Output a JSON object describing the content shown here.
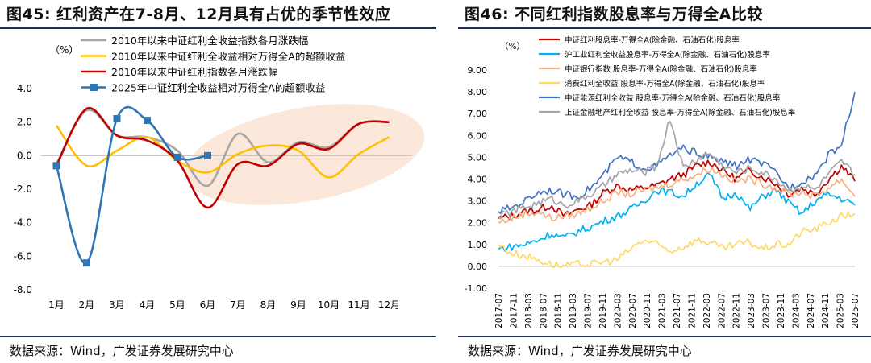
{
  "left": {
    "title": "图45:  红利资产在7-8月、12月具有占优的季节性效应",
    "source": "数据来源：Wind，广发证券发展研究中心",
    "chart_data": {
      "type": "line",
      "unit": "（%）",
      "categories": [
        "1月",
        "2月",
        "3月",
        "4月",
        "5月",
        "6月",
        "7月",
        "8月",
        "9月",
        "10月",
        "11月",
        "12月"
      ],
      "ylim": [
        -8,
        4
      ],
      "yticks": [
        "4.0",
        "2.0",
        "0.0",
        "-2.0",
        "-4.0",
        "-6.0",
        "-8.0"
      ],
      "series": [
        {
          "name": "2010年以来中证红利全收益指数各月涨跌幅",
          "color": "#a6a6a6",
          "values": [
            -0.5,
            2.7,
            1.2,
            1.1,
            0.3,
            -1.8,
            1.3,
            -0.4,
            0.8,
            0.5,
            1.9,
            2.0
          ]
        },
        {
          "name": "2010年以来中证红利全收益相对万得全A的超额收益",
          "color": "#ffc000",
          "values": [
            1.8,
            -0.6,
            0.3,
            1.1,
            -0.3,
            -1.0,
            0.1,
            0.6,
            0.3,
            -1.3,
            0.1,
            1.1
          ]
        },
        {
          "name": "2010年以来中证红利指数各月涨跌幅",
          "color": "#c00000",
          "values": [
            -0.6,
            2.8,
            1.2,
            0.9,
            -0.3,
            -3.1,
            -0.5,
            -0.6,
            0.7,
            0.4,
            1.9,
            2.0
          ]
        },
        {
          "name": "2025年中证红利全收益相对万得全A的超额收益",
          "color": "#2e75b6",
          "marker": "square",
          "values": [
            -0.6,
            -6.4,
            2.2,
            2.1,
            -0.1,
            0.0,
            null,
            null,
            null,
            null,
            null,
            null
          ]
        }
      ]
    }
  },
  "right": {
    "title": "图46:  不同红利指数股息率与万得全A比较",
    "source": "数据来源：Wind，广发证券发展研究中心",
    "chart_data": {
      "type": "line",
      "unit": "（%）",
      "ylim": [
        -1,
        9
      ],
      "yticks": [
        "9.00",
        "8.00",
        "7.00",
        "6.00",
        "5.00",
        "4.00",
        "3.00",
        "2.00",
        "1.00",
        "0.00",
        "-1.00"
      ],
      "x_start": "2017-07",
      "x_end": "2025-07",
      "x_labels": [
        "2017-07",
        "2017-11",
        "2018-03",
        "2018-07",
        "2018-11",
        "2019-03",
        "2019-07",
        "2019-11",
        "2020-03",
        "2020-07",
        "2020-11",
        "2021-03",
        "2021-07",
        "2021-11",
        "2022-03",
        "2022-07",
        "2022-11",
        "2023-03",
        "2023-07",
        "2023-11",
        "2024-03",
        "2024-07",
        "2024-11",
        "2025-03",
        "2025-07"
      ],
      "series": [
        {
          "name": "中证红利股息率-万得全A(除金融、石油石化)股息率",
          "color": "#c00000",
          "values": [
            2.2,
            2.3,
            2.5,
            2.6,
            2.8,
            2.3,
            2.6,
            2.8,
            3.4,
            3.7,
            3.5,
            3.6,
            3.7,
            4.0,
            4.2,
            4.6,
            4.8,
            4.4,
            4.0,
            4.4,
            4.1,
            3.8,
            3.3,
            3.6,
            3.3,
            4.0,
            4.6,
            3.9
          ]
        },
        {
          "name": "沪工业红利全收益股息率-万得全A(除金融、石油石化)股息率",
          "color": "#00b0f0",
          "values": [
            0.8,
            0.9,
            1.0,
            1.2,
            1.5,
            1.3,
            1.6,
            1.8,
            2.1,
            2.3,
            2.6,
            3.0,
            3.5,
            3.4,
            3.2,
            3.8,
            4.2,
            3.1,
            3.4,
            2.6,
            3.2,
            3.5,
            2.9,
            2.4,
            3.0,
            3.3,
            3.1,
            2.8
          ]
        },
        {
          "name": "中证银行指数 股息率-万得全A(除金融、石油石化)股息率",
          "color": "#f4b183",
          "values": [
            2.0,
            2.2,
            2.4,
            2.5,
            2.2,
            2.3,
            2.4,
            2.7,
            3.0,
            3.4,
            3.3,
            3.5,
            3.6,
            3.8,
            4.0,
            4.2,
            4.5,
            4.2,
            3.9,
            4.0,
            3.8,
            3.6,
            3.3,
            3.4,
            3.2,
            3.6,
            4.0,
            3.2
          ]
        },
        {
          "name": "消费红利全收益 股息率-万得全A(除金融、石油石化)股息率",
          "color": "#ffd966",
          "values": [
            1.0,
            0.6,
            0.5,
            0.3,
            0.1,
            0.0,
            0.1,
            0.1,
            0.2,
            0.3,
            0.8,
            1.2,
            1.0,
            0.7,
            0.9,
            1.2,
            1.1,
            0.8,
            1.0,
            1.1,
            0.8,
            1.0,
            1.0,
            1.6,
            1.7,
            2.0,
            2.3,
            2.4
          ]
        },
        {
          "name": "中证能源红利全收益 股息率-万得全A(除金融、石油石化)股息率",
          "color": "#4472c4",
          "values": [
            2.5,
            2.7,
            3.0,
            3.4,
            3.5,
            3.3,
            3.2,
            3.6,
            4.2,
            5.0,
            4.8,
            4.5,
            4.6,
            5.1,
            5.4,
            5.2,
            5.0,
            4.8,
            4.6,
            4.9,
            4.7,
            4.3,
            3.6,
            3.9,
            4.2,
            5.1,
            5.6,
            8.0
          ]
        },
        {
          "name": "上证金融地产红利全收益 股息率-万得全A(除金融、石油石化)股息率",
          "color": "#a6a6a6",
          "values": [
            2.3,
            2.5,
            2.7,
            2.9,
            3.1,
            2.8,
            3.0,
            3.3,
            3.7,
            4.2,
            4.4,
            4.3,
            4.6,
            6.8,
            4.5,
            4.9,
            5.2,
            4.6,
            4.3,
            4.5,
            4.3,
            4.0,
            3.5,
            3.7,
            3.5,
            4.2,
            4.8,
            4.2
          ]
        }
      ]
    }
  }
}
